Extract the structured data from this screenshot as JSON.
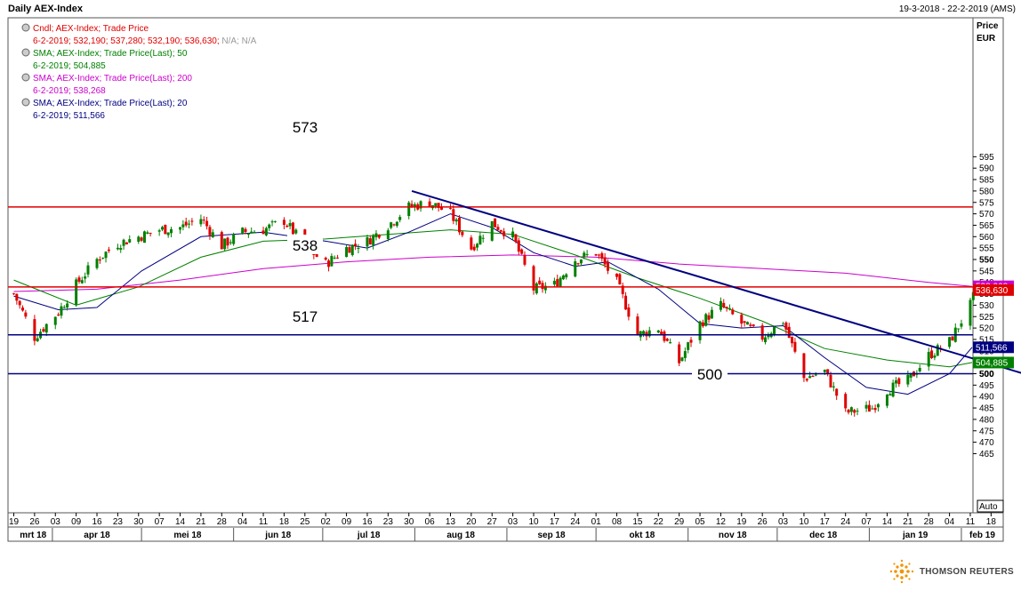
{
  "header": {
    "title": "Daily AEX-Index",
    "date_range": "19-3-2018 - 22-2-2019 (AMS)"
  },
  "legend": [
    {
      "label": "Cndl; AEX-Index; Trade Price",
      "values": "6-2-2019; 532,190; 537,280; 532,190; 536,630;",
      "extra": " N/A; N/A",
      "color": "#e00000",
      "value_color": "#e00000"
    },
    {
      "label": "SMA; AEX-Index; Trade Price(Last);  50",
      "values": "6-2-2019; 504,885",
      "extra": "",
      "color": "#008000",
      "value_color": "#008000"
    },
    {
      "label": "SMA; AEX-Index; Trade Price(Last);  200",
      "values": "6-2-2019; 538,268",
      "extra": "",
      "color": "#cc00cc",
      "value_color": "#cc00cc"
    },
    {
      "label": "SMA; AEX-Index; Trade Price(Last);  20",
      "values": "6-2-2019; 511,566",
      "extra": "",
      "color": "#000080",
      "value_color": "#000080"
    }
  ],
  "axis": {
    "price_label": "Price",
    "currency_label": "EUR",
    "auto_label": "Auto",
    "y_ticks": [
      "465",
      "470",
      "475",
      "480",
      "485",
      "490",
      "495",
      "500",
      "505",
      "510",
      "515",
      "520",
      "525",
      "530",
      "535",
      "540",
      "545",
      "550",
      "555",
      "560",
      "565",
      "570",
      "575",
      "580",
      "585",
      "590",
      "595"
    ],
    "bold_ticks": [
      "500",
      "550"
    ],
    "day_ticks": [
      "19",
      "26",
      "03",
      "09",
      "16",
      "23",
      "30",
      "07",
      "14",
      "21",
      "28",
      "04",
      "11",
      "18",
      "25",
      "02",
      "09",
      "16",
      "23",
      "30",
      "06",
      "13",
      "20",
      "27",
      "03",
      "10",
      "17",
      "24",
      "01",
      "08",
      "15",
      "22",
      "29",
      "05",
      "12",
      "19",
      "26",
      "03",
      "10",
      "17",
      "24",
      "07",
      "14",
      "21",
      "28",
      "04",
      "11",
      "18"
    ],
    "month_labels": [
      "mrt 18",
      "apr 18",
      "mei 18",
      "jun 18",
      "jul 18",
      "aug 18",
      "sep 18",
      "okt 18",
      "nov 18",
      "dec 18",
      "jan 19",
      "feb 19"
    ]
  },
  "badges": {
    "sma200": "538,268",
    "last_price": "536,630",
    "sma20": "511,566",
    "sma50": "504,885",
    "level_500": "500"
  },
  "annotations": {
    "level_573": "573",
    "level_538": "538",
    "level_517": "517",
    "level_500": "500"
  },
  "footer": {
    "brand": "THOMSON REUTERS"
  },
  "colors": {
    "up": "#008000",
    "down": "#e00000",
    "sma20": "#000080",
    "sma50": "#008000",
    "sma200": "#cc00cc",
    "resistance": "#e00000",
    "support": "#000080",
    "trendline": "#000080"
  },
  "chart_data": {
    "type": "candlestick",
    "title": "Daily AEX-Index",
    "ylabel": "Price EUR",
    "ylim": [
      462,
      598
    ],
    "horizontal_levels": [
      {
        "value": 573,
        "color": "red"
      },
      {
        "value": 538,
        "color": "red"
      },
      {
        "value": 517,
        "color": "navy"
      },
      {
        "value": 500,
        "color": "navy"
      }
    ],
    "trendline": {
      "from": {
        "x": "2018-07-31",
        "y": 580
      },
      "to": {
        "x": "2019-02-22",
        "y": 500
      }
    },
    "close_anchors": [
      {
        "x": "2018-03-19",
        "close": 535
      },
      {
        "x": "2018-03-26",
        "close": 516
      },
      {
        "x": "2018-04-03",
        "close": 527
      },
      {
        "x": "2018-04-09",
        "close": 539
      },
      {
        "x": "2018-04-16",
        "close": 550
      },
      {
        "x": "2018-04-23",
        "close": 557
      },
      {
        "x": "2018-04-30",
        "close": 560
      },
      {
        "x": "2018-05-07",
        "close": 563
      },
      {
        "x": "2018-05-14",
        "close": 564
      },
      {
        "x": "2018-05-21",
        "close": 568
      },
      {
        "x": "2018-05-28",
        "close": 556
      },
      {
        "x": "2018-06-04",
        "close": 562
      },
      {
        "x": "2018-06-11",
        "close": 563
      },
      {
        "x": "2018-06-18",
        "close": 567
      },
      {
        "x": "2018-06-25",
        "close": 556
      },
      {
        "x": "2018-07-02",
        "close": 548
      },
      {
        "x": "2018-07-09",
        "close": 555
      },
      {
        "x": "2018-07-16",
        "close": 558
      },
      {
        "x": "2018-07-23",
        "close": 565
      },
      {
        "x": "2018-07-30",
        "close": 573
      },
      {
        "x": "2018-08-06",
        "close": 575
      },
      {
        "x": "2018-08-13",
        "close": 570
      },
      {
        "x": "2018-08-20",
        "close": 555
      },
      {
        "x": "2018-08-27",
        "close": 566
      },
      {
        "x": "2018-09-03",
        "close": 560
      },
      {
        "x": "2018-09-10",
        "close": 537
      },
      {
        "x": "2018-09-17",
        "close": 539
      },
      {
        "x": "2018-09-24",
        "close": 550
      },
      {
        "x": "2018-10-01",
        "close": 553
      },
      {
        "x": "2018-10-08",
        "close": 540
      },
      {
        "x": "2018-10-15",
        "close": 517
      },
      {
        "x": "2018-10-22",
        "close": 520
      },
      {
        "x": "2018-10-29",
        "close": 505
      },
      {
        "x": "2018-11-05",
        "close": 522
      },
      {
        "x": "2018-11-12",
        "close": 530
      },
      {
        "x": "2018-11-19",
        "close": 522
      },
      {
        "x": "2018-11-26",
        "close": 516
      },
      {
        "x": "2018-12-03",
        "close": 523
      },
      {
        "x": "2018-12-10",
        "close": 498
      },
      {
        "x": "2018-12-17",
        "close": 501
      },
      {
        "x": "2018-12-24",
        "close": 483
      },
      {
        "x": "2019-01-02",
        "close": 485
      },
      {
        "x": "2019-01-07",
        "close": 493
      },
      {
        "x": "2019-01-14",
        "close": 497
      },
      {
        "x": "2019-01-21",
        "close": 508
      },
      {
        "x": "2019-01-28",
        "close": 514
      },
      {
        "x": "2019-02-04",
        "close": 530
      },
      {
        "x": "2019-02-06",
        "close": 536.63
      }
    ],
    "sma20": [
      {
        "x": "2018-03-19",
        "y": 534
      },
      {
        "x": "2018-04-03",
        "y": 528
      },
      {
        "x": "2018-04-16",
        "y": 529
      },
      {
        "x": "2018-05-01",
        "y": 545
      },
      {
        "x": "2018-05-21",
        "y": 560
      },
      {
        "x": "2018-06-11",
        "y": 562
      },
      {
        "x": "2018-07-02",
        "y": 558
      },
      {
        "x": "2018-07-16",
        "y": 555
      },
      {
        "x": "2018-07-30",
        "y": 562
      },
      {
        "x": "2018-08-13",
        "y": 570
      },
      {
        "x": "2018-08-27",
        "y": 564
      },
      {
        "x": "2018-09-10",
        "y": 553
      },
      {
        "x": "2018-09-24",
        "y": 547
      },
      {
        "x": "2018-10-05",
        "y": 549
      },
      {
        "x": "2018-10-22",
        "y": 537
      },
      {
        "x": "2018-11-05",
        "y": 522
      },
      {
        "x": "2018-11-19",
        "y": 520
      },
      {
        "x": "2018-12-03",
        "y": 521
      },
      {
        "x": "2018-12-17",
        "y": 507
      },
      {
        "x": "2018-12-31",
        "y": 494
      },
      {
        "x": "2019-01-14",
        "y": 491
      },
      {
        "x": "2019-01-28",
        "y": 500
      },
      {
        "x": "2019-02-06",
        "y": 511.566
      }
    ],
    "sma50": [
      {
        "x": "2018-03-19",
        "y": 541
      },
      {
        "x": "2018-04-09",
        "y": 530
      },
      {
        "x": "2018-04-30",
        "y": 538
      },
      {
        "x": "2018-05-21",
        "y": 551
      },
      {
        "x": "2018-06-11",
        "y": 558
      },
      {
        "x": "2018-07-02",
        "y": 559
      },
      {
        "x": "2018-07-23",
        "y": 561
      },
      {
        "x": "2018-08-13",
        "y": 563
      },
      {
        "x": "2018-09-03",
        "y": 561
      },
      {
        "x": "2018-09-24",
        "y": 552
      },
      {
        "x": "2018-10-15",
        "y": 542
      },
      {
        "x": "2018-11-05",
        "y": 533
      },
      {
        "x": "2018-11-26",
        "y": 523
      },
      {
        "x": "2018-12-17",
        "y": 511
      },
      {
        "x": "2019-01-07",
        "y": 506
      },
      {
        "x": "2019-01-28",
        "y": 503
      },
      {
        "x": "2019-02-06",
        "y": 504.885
      }
    ],
    "sma200": [
      {
        "x": "2018-03-19",
        "y": 536
      },
      {
        "x": "2018-04-16",
        "y": 537
      },
      {
        "x": "2018-05-14",
        "y": 541
      },
      {
        "x": "2018-06-11",
        "y": 546
      },
      {
        "x": "2018-07-09",
        "y": 549
      },
      {
        "x": "2018-08-06",
        "y": 551
      },
      {
        "x": "2018-09-03",
        "y": 552
      },
      {
        "x": "2018-10-01",
        "y": 551
      },
      {
        "x": "2018-10-29",
        "y": 548
      },
      {
        "x": "2018-11-26",
        "y": 546
      },
      {
        "x": "2018-12-24",
        "y": 544
      },
      {
        "x": "2019-01-21",
        "y": 540
      },
      {
        "x": "2019-02-06",
        "y": 538.268
      }
    ]
  }
}
